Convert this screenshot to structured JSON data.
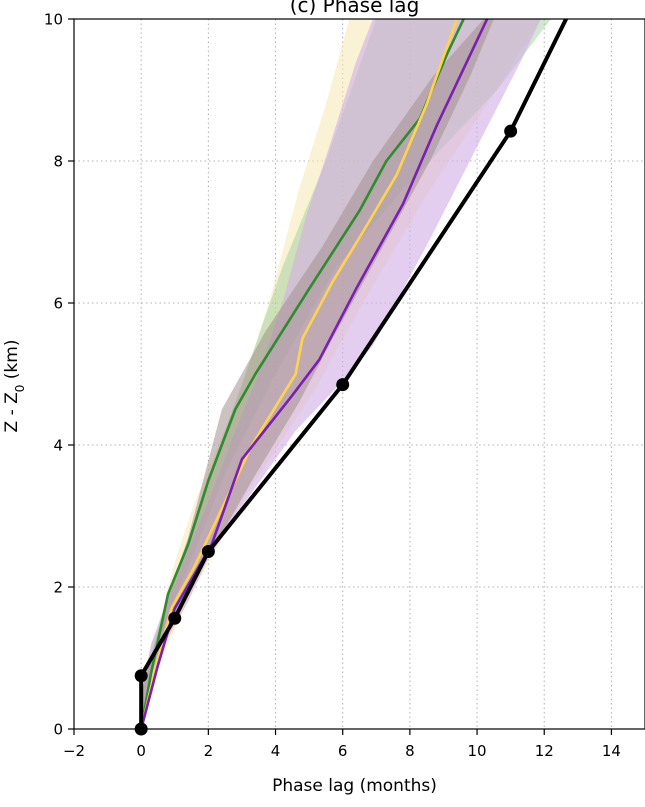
{
  "chart_data": {
    "type": "line",
    "title": "(c) Phase lag",
    "xlabel": "Phase lag (months)",
    "ylabel": "Z - Z",
    "ylabel_subscript": "0",
    "ylabel_unit": " (km)",
    "xlim": [
      -2,
      15
    ],
    "ylim": [
      0,
      10
    ],
    "xticks": [
      -2,
      0,
      2,
      4,
      6,
      8,
      10,
      12,
      14
    ],
    "xtick_labels": [
      "−2",
      "0",
      "2",
      "4",
      "6",
      "8",
      "10",
      "12",
      "14"
    ],
    "yticks": [
      0,
      2,
      4,
      6,
      8,
      10
    ],
    "ytick_labels": [
      "0",
      "2",
      "4",
      "6",
      "8",
      "10"
    ],
    "grid": true,
    "bands": [
      {
        "color": "#f6e7b0",
        "opacity": 0.55,
        "lower": [
          [
            0,
            0
          ],
          [
            0.3,
            0.6
          ],
          [
            0.8,
            1.2
          ],
          [
            1.6,
            2.0
          ],
          [
            2.2,
            2.5
          ],
          [
            3.0,
            3.2
          ],
          [
            4.1,
            4.0
          ],
          [
            5.2,
            4.8
          ],
          [
            6.6,
            6.0
          ],
          [
            8.6,
            7.6
          ],
          [
            10.3,
            8.8
          ],
          [
            11.9,
            10.0
          ]
        ],
        "upper": [
          [
            0,
            0
          ],
          [
            0.05,
            0.6
          ],
          [
            0.4,
            1.2
          ],
          [
            0.8,
            2.0
          ],
          [
            1.1,
            2.5
          ],
          [
            1.6,
            3.2
          ],
          [
            2.3,
            4.0
          ],
          [
            3.0,
            4.8
          ],
          [
            3.8,
            6.0
          ],
          [
            4.7,
            7.6
          ],
          [
            5.5,
            8.8
          ],
          [
            6.2,
            10.0
          ]
        ]
      },
      {
        "color": "#8fc98f",
        "opacity": 0.42,
        "lower": [
          [
            0,
            0
          ],
          [
            0.05,
            0.6
          ],
          [
            0.3,
            1.2
          ],
          [
            0.9,
            2.0
          ],
          [
            1.5,
            2.8
          ],
          [
            2.2,
            3.8
          ],
          [
            3.1,
            5.0
          ],
          [
            4.2,
            6.5
          ],
          [
            5.5,
            8.0
          ],
          [
            7.0,
            10.0
          ]
        ],
        "upper": [
          [
            0,
            0
          ],
          [
            0.3,
            0.8
          ],
          [
            0.8,
            1.6
          ],
          [
            1.6,
            2.5
          ],
          [
            2.5,
            3.6
          ],
          [
            4.0,
            5.0
          ],
          [
            5.8,
            6.5
          ],
          [
            7.8,
            7.6
          ],
          [
            9.6,
            8.5
          ],
          [
            10.6,
            9.0
          ],
          [
            12.2,
            10.0
          ]
        ]
      },
      {
        "color": "#d2aee6",
        "opacity": 0.6,
        "lower": [
          [
            0,
            0
          ],
          [
            0.3,
            0.6
          ],
          [
            0.7,
            1.2
          ],
          [
            1.4,
            1.8
          ],
          [
            2.0,
            2.4
          ],
          [
            3.1,
            3.2
          ],
          [
            4.6,
            4.2
          ],
          [
            5.8,
            4.8
          ],
          [
            6.9,
            5.4
          ],
          [
            8.6,
            6.9
          ],
          [
            10.0,
            8.2
          ],
          [
            11.3,
            9.4
          ],
          [
            11.9,
            10.0
          ]
        ],
        "upper": [
          [
            0,
            0
          ],
          [
            0.05,
            0.6
          ],
          [
            0.3,
            1.2
          ],
          [
            0.8,
            1.8
          ],
          [
            1.3,
            2.4
          ],
          [
            2.0,
            3.2
          ],
          [
            2.8,
            4.2
          ],
          [
            3.5,
            5.0
          ],
          [
            4.2,
            6.0
          ],
          [
            4.9,
            7.2
          ],
          [
            5.6,
            8.2
          ],
          [
            6.4,
            9.4
          ],
          [
            6.9,
            10.0
          ]
        ]
      },
      {
        "color": "#a38f8f",
        "opacity": 0.55,
        "lower": [
          [
            0,
            0
          ],
          [
            0.2,
            0.6
          ],
          [
            0.6,
            1.2
          ],
          [
            1.4,
            2.0
          ],
          [
            2.1,
            2.5
          ],
          [
            3.3,
            3.5
          ],
          [
            4.7,
            4.6
          ],
          [
            5.7,
            5.5
          ],
          [
            7.2,
            6.8
          ],
          [
            8.6,
            8.0
          ],
          [
            9.8,
            9.2
          ],
          [
            10.5,
            10.0
          ]
        ],
        "upper": [
          [
            0,
            0
          ],
          [
            0.05,
            0.6
          ],
          [
            0.4,
            1.2
          ],
          [
            0.9,
            2.0
          ],
          [
            1.4,
            2.7
          ],
          [
            2.4,
            4.5
          ],
          [
            3.7,
            5.6
          ],
          [
            5.4,
            6.8
          ],
          [
            6.9,
            8.0
          ],
          [
            8.7,
            9.2
          ],
          [
            10.2,
            10.0
          ]
        ]
      }
    ],
    "series": [
      {
        "color": "#2e8b2e",
        "points": [
          [
            0,
            0
          ],
          [
            0.3,
            0.8
          ],
          [
            0.8,
            1.9
          ],
          [
            1.4,
            2.6
          ],
          [
            2.0,
            3.5
          ],
          [
            2.8,
            4.5
          ],
          [
            3.4,
            5.0
          ],
          [
            5.0,
            6.2
          ],
          [
            6.5,
            7.3
          ],
          [
            7.3,
            8.0
          ],
          [
            8.3,
            8.6
          ],
          [
            9.1,
            9.5
          ],
          [
            9.6,
            10.0
          ]
        ]
      },
      {
        "color": "#ffd34d",
        "points": [
          [
            0,
            0
          ],
          [
            0.4,
            0.8
          ],
          [
            0.9,
            1.7
          ],
          [
            1.6,
            2.3
          ],
          [
            2.3,
            3.0
          ],
          [
            3.3,
            4.0
          ],
          [
            4.6,
            5.0
          ],
          [
            4.8,
            5.5
          ],
          [
            5.7,
            6.3
          ],
          [
            6.6,
            7.0
          ],
          [
            7.6,
            7.8
          ],
          [
            8.5,
            8.8
          ],
          [
            9.4,
            10.0
          ]
        ]
      },
      {
        "color": "#7a1fb2",
        "points": [
          [
            0,
            0
          ],
          [
            0.5,
            0.9
          ],
          [
            1.0,
            1.7
          ],
          [
            2.1,
            2.6
          ],
          [
            3.0,
            3.8
          ],
          [
            4.5,
            4.7
          ],
          [
            5.3,
            5.2
          ],
          [
            6.4,
            6.2
          ],
          [
            7.8,
            7.4
          ],
          [
            8.8,
            8.5
          ],
          [
            9.7,
            9.4
          ],
          [
            10.3,
            10.0
          ]
        ]
      },
      {
        "color": "#000000",
        "width": 4,
        "markers": true,
        "points": [
          [
            0,
            0
          ],
          [
            0,
            0.75
          ],
          [
            1.0,
            1.56
          ],
          [
            2.0,
            2.5
          ],
          [
            6.0,
            4.85
          ],
          [
            11.0,
            8.42
          ],
          [
            12.65,
            10.0
          ]
        ]
      }
    ]
  }
}
